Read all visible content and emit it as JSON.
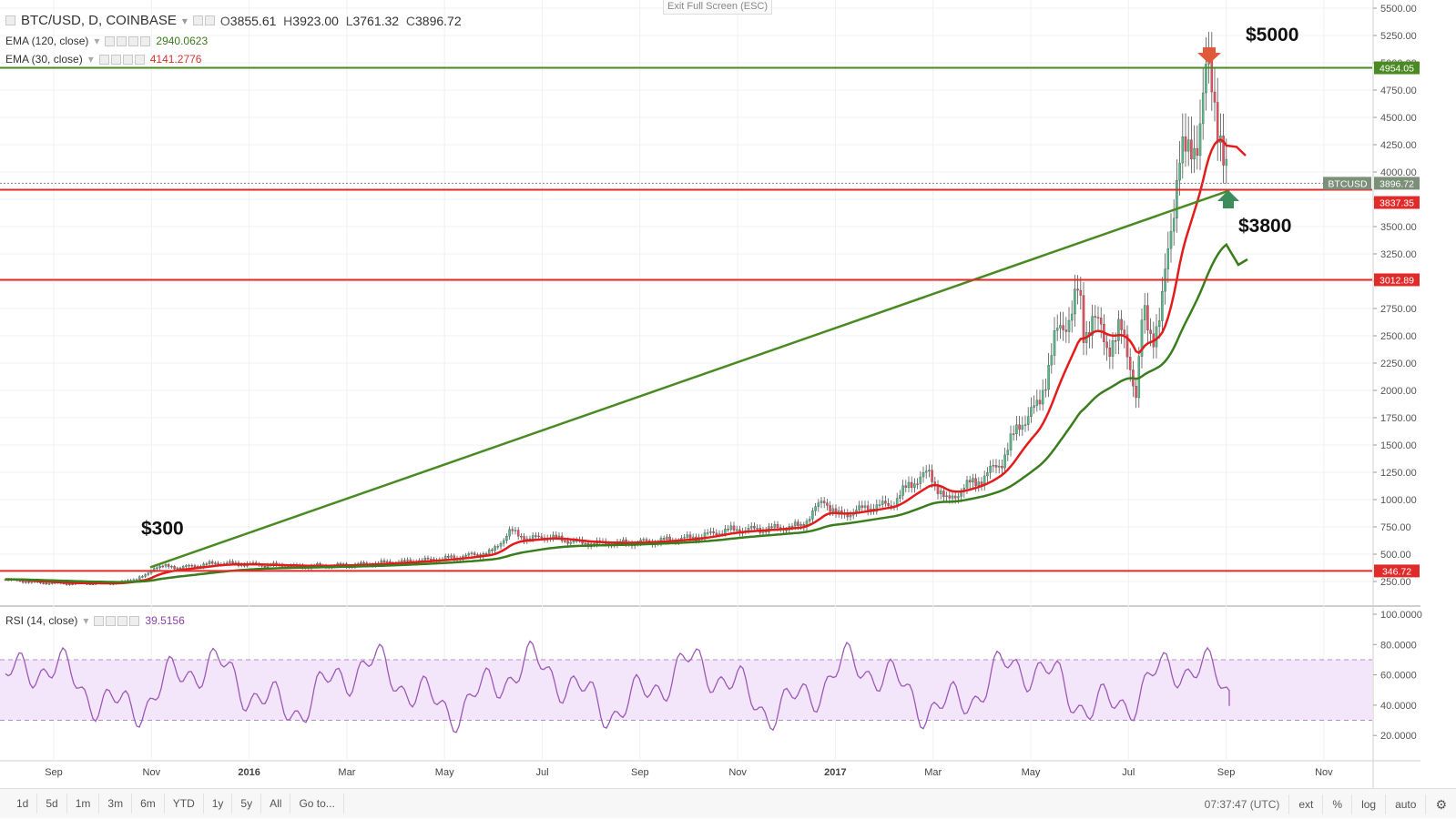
{
  "header": {
    "symbol": "BTC/USD, D, COINBASE",
    "open_label": "O",
    "open": "3855.61",
    "high_label": "H",
    "high": "3923.00",
    "low_label": "L",
    "low": "3761.32",
    "close_label": "C",
    "close": "3896.72",
    "ema120_label": "EMA (120, close)",
    "ema120_value": "2940.0623",
    "ema30_label": "EMA (30, close)",
    "ema30_value": "4141.2776",
    "rsi_label": "RSI (14, close)",
    "rsi_value": "39.5156",
    "exit_fullscreen": "Exit Full Screen (ESC)"
  },
  "colors": {
    "up": "#53b987",
    "down": "#eb4d5c",
    "ema30": "#e31b1b",
    "ema120": "#3a7d1c",
    "trendline": "#4a8a23",
    "hline_red": "#e02b2b",
    "hline_green": "#4a8a23",
    "rsi": "#9b59b6",
    "rsi_band": "#f3e6fb"
  },
  "price_axis": {
    "labels": [
      "5500.00",
      "5250.00",
      "5000.00",
      "4750.00",
      "4500.00",
      "4250.00",
      "4000.00",
      "3750.00",
      "3500.00",
      "3250.00",
      "3000.00",
      "2750.00",
      "2500.00",
      "2250.00",
      "2000.00",
      "1750.00",
      "1500.00",
      "1250.00",
      "1000.00",
      "750.00",
      "500.00",
      "250.00"
    ],
    "markers": [
      {
        "text": "4954.05",
        "price": 4954.05,
        "color": "#4a8a23"
      },
      {
        "text": "BTCUSD",
        "price": 3896.72,
        "color": "#7c8f79",
        "wide": true
      },
      {
        "text": "3896.72",
        "price": 3896.72,
        "color": "#7c8f79"
      },
      {
        "text": "3837.35",
        "price": 3837.35,
        "color": "#e02b2b",
        "below": true
      },
      {
        "text": "3012.89",
        "price": 3012.89,
        "color": "#e02b2b"
      },
      {
        "text": "346.72",
        "price": 346.72,
        "color": "#e02b2b"
      }
    ]
  },
  "rsi_axis": {
    "labels": [
      "100.0000",
      "80.0000",
      "60.0000",
      "40.0000",
      "20.0000"
    ]
  },
  "time_axis": {
    "labels": [
      {
        "text": "Sep",
        "bold": false
      },
      {
        "text": "Nov",
        "bold": false
      },
      {
        "text": "2016",
        "bold": true
      },
      {
        "text": "Mar",
        "bold": false
      },
      {
        "text": "May",
        "bold": false
      },
      {
        "text": "Jul",
        "bold": false
      },
      {
        "text": "Sep",
        "bold": false
      },
      {
        "text": "Nov",
        "bold": false
      },
      {
        "text": "2017",
        "bold": true
      },
      {
        "text": "Mar",
        "bold": false
      },
      {
        "text": "May",
        "bold": false
      },
      {
        "text": "Jul",
        "bold": false
      },
      {
        "text": "Sep",
        "bold": false
      },
      {
        "text": "Nov",
        "bold": false
      }
    ]
  },
  "annotations": [
    {
      "text": "$5000",
      "price": 5200
    },
    {
      "text": "$3800",
      "price": 3450
    },
    {
      "text": "$300",
      "price": 680
    }
  ],
  "horizontal_lines": [
    {
      "price": 4954.05,
      "color": "green"
    },
    {
      "price": 3837.35,
      "color": "red"
    },
    {
      "price": 3012.89,
      "color": "red"
    },
    {
      "price": 346.72,
      "color": "red"
    }
  ],
  "bottom_toolbar": {
    "timeframes": [
      "1d",
      "5d",
      "1m",
      "3m",
      "6m",
      "YTD",
      "1y",
      "5y",
      "All",
      "Go to..."
    ],
    "time": "07:37:47 (UTC)",
    "right_buttons": [
      "ext",
      "%",
      "log",
      "auto"
    ],
    "settings_icon": "gear-icon"
  }
}
